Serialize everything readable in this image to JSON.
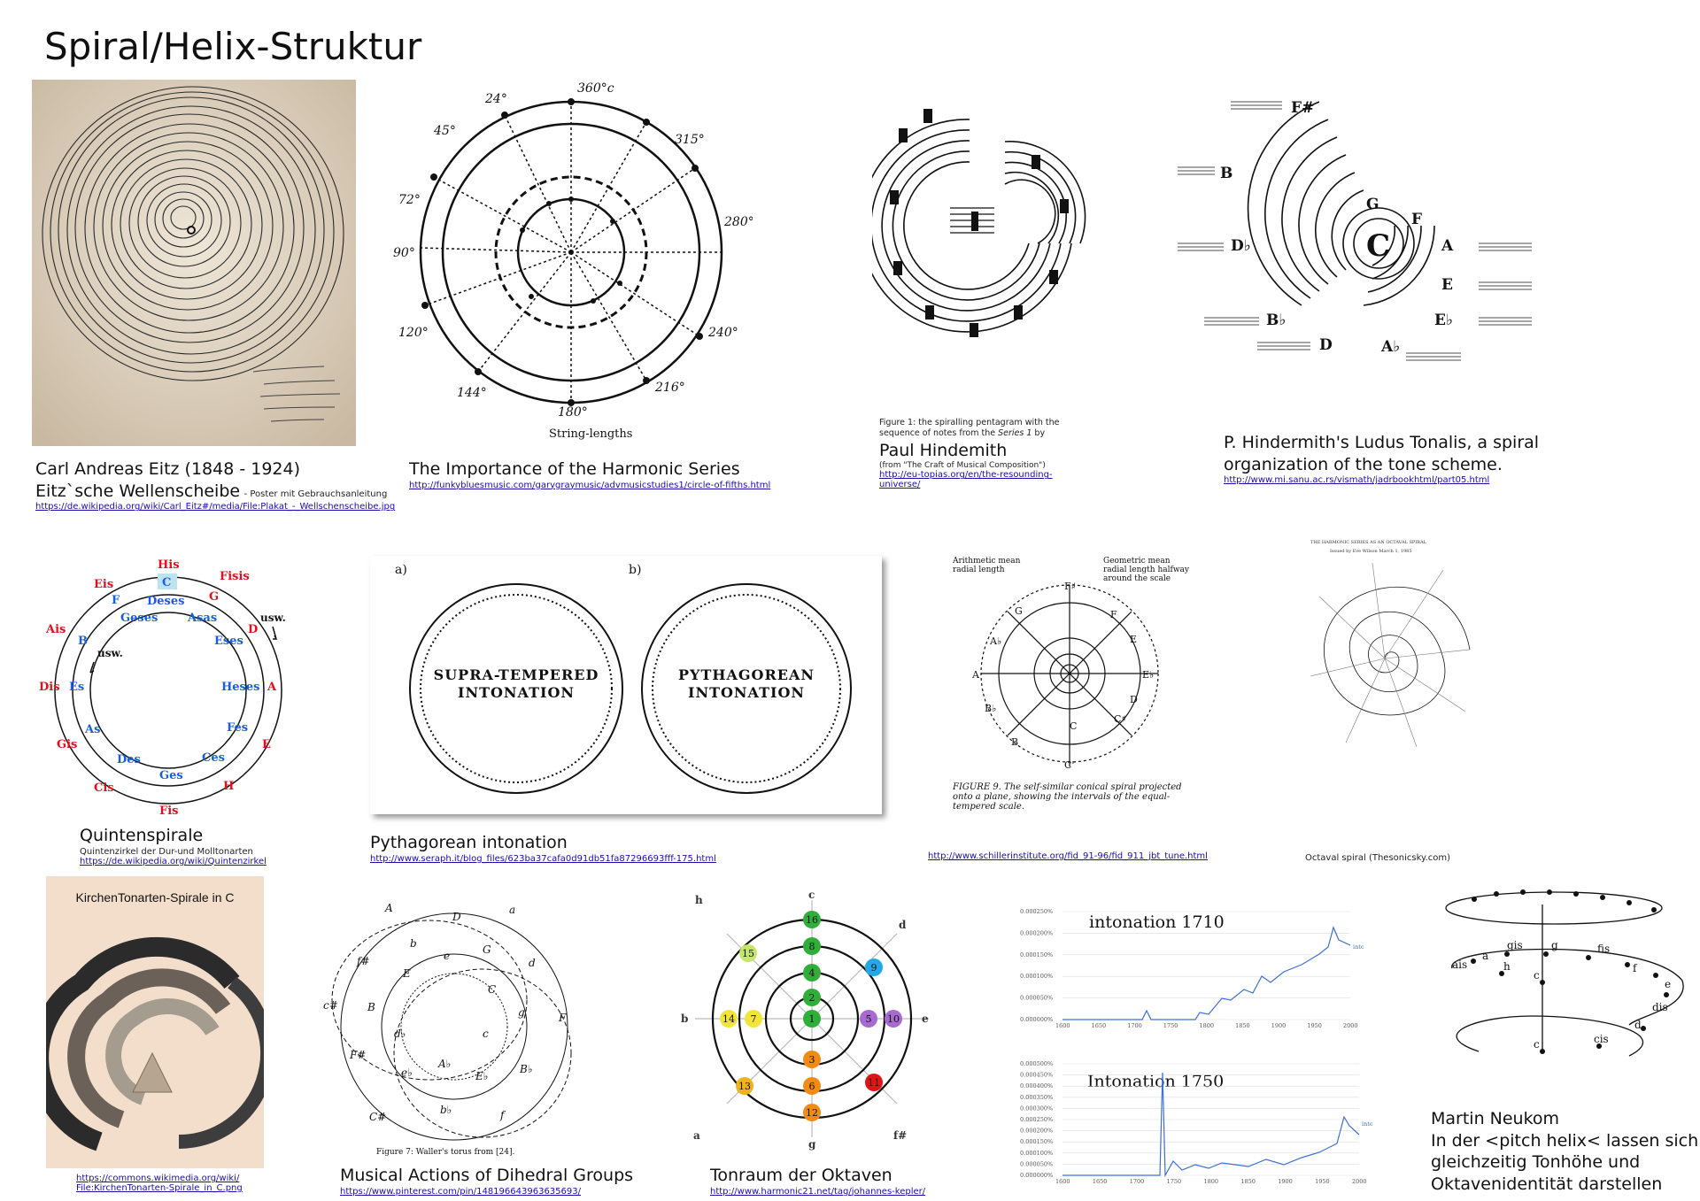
{
  "page": {
    "title": "Spiral/Helix-Struktur"
  },
  "items": {
    "eitz": {
      "line1": "Carl Andreas Eitz (1848 - 1924)",
      "line2": "Eitz`sche Wellenscheibe",
      "note": "- Poster mit Gebrauchsanleitung",
      "url": "https://de.wikipedia.org/wiki/Carl_Eitz#/media/File:Plakat_-_Wellschenscheibe.jpg"
    },
    "harmonic": {
      "caption": "The Importance of the Harmonic Series",
      "url": "http://funkybluesmusic.com/garygraymusic/advmusicstudies1/circle-of-fifths.html",
      "figure_label": "String-lengths",
      "degrees": [
        "360°c",
        "24°",
        "45°",
        "72°",
        "90°",
        "120°",
        "144°",
        "180°",
        "216°",
        "240°",
        "280°",
        "315°"
      ]
    },
    "hindemith": {
      "fig_caption_1": "Figure 1: the spiralling pentagram with the",
      "fig_caption_2": "sequence of notes from the",
      "fig_caption_series": "Series 1",
      "fig_caption_3": "by",
      "name": "Paul Hindemith",
      "sub": "(from \"The Craft of Musical Composition\")",
      "url": "http://eu-topias.org/en/the-resounding-universe/"
    },
    "ludus": {
      "line1": "P. Hindermith's Ludus Tonalis, a spiral",
      "line2": "organization of the tone scheme.",
      "url": "http://www.mi.sanu.ac.rs/vismath/jadrbookhtml/part05.html",
      "notes": [
        "F#",
        "B",
        "G",
        "F",
        "D♭",
        "C",
        "A",
        "E",
        "E♭",
        "B♭",
        "D",
        "A♭"
      ]
    },
    "quinten": {
      "caption": "Quintenspirale",
      "sub": "Quintenzirkel der Dur-und Molltonarten",
      "url": "https://de.wikipedia.org/wiki/Quintenzirkel",
      "usw": "usw.",
      "red": [
        "His",
        "Fisis",
        "Eis",
        "G",
        "Ais",
        "D",
        "Dis",
        "A",
        "Gis",
        "E",
        "Cis",
        "H",
        "Fis"
      ],
      "blue": [
        "C",
        "F",
        "Deses",
        "Geses",
        "Asas",
        "B",
        "Eses",
        "Es",
        "Heses",
        "As",
        "Fes",
        "Des",
        "Ces",
        "Ges"
      ]
    },
    "pythagorean": {
      "caption": "Pythagorean intonation",
      "url": "http://www.seraph.it/blog_files/623ba37cafa0d91db51fa87296693fff-175.html",
      "label_a": "a)",
      "label_b": "b)",
      "circle_a_1": "SUPRA-TEMPERED",
      "circle_a_2": "INTONATION",
      "circle_b_1": "PYTHAGOREAN",
      "circle_b_2": "INTONATION"
    },
    "schiller": {
      "url": "http://www.schillerinstitute.org/fid_91-96/fid_911_jbt_tune.html",
      "label_arith_1": "Arithmetic mean",
      "label_arith_2": "radial length",
      "label_geo_1": "Geometric mean",
      "label_geo_2": "radial length halfway",
      "label_geo_3": "around the scale",
      "fig_1": "FIGURE 9. The self-similar conical spiral projected",
      "fig_2": "onto a plane, showing the intervals of the equal-",
      "fig_3": "tempered scale.",
      "notes": [
        "F♯",
        "G",
        "F",
        "A♭",
        "E",
        "A",
        "E♭",
        "B♭",
        "D",
        "B",
        "C♯",
        "C",
        "C'"
      ]
    },
    "octaval": {
      "caption": "Octaval spiral  (Thesonicsky.com)",
      "header": "THE HARMONIC SERIES AS AN OCTAVAL SPIRAL",
      "sub": "Issued by Eve Wilson  March 1, 1985"
    },
    "kirchen": {
      "poster_title": "KirchenTonarten-Spirale in C",
      "url_1": "https://commons.wikimedia.org/wiki/",
      "url_2": "File:KirchenTonarten-Spirale_in_C.png"
    },
    "dihedral": {
      "caption": "Musical Actions of Dihedral Groups",
      "url": "https://www.pinterest.com/pin/148196643963635693/",
      "fig": "Figure 7: Waller's torus from [24].",
      "notes": [
        "A",
        "D",
        "a",
        "f#",
        "b",
        "G",
        "e",
        "d",
        "c#",
        "E",
        "C",
        "F",
        "B",
        "c",
        "g",
        "F#",
        "d♭",
        "A♭",
        "B♭",
        "e♭",
        "E♭",
        "C#",
        "b♭",
        "f"
      ]
    },
    "tonraum": {
      "caption": "Tonraum der Oktaven",
      "url": "http://www.harmonic21.net/tag/johannes-kepler/",
      "axes": [
        "c",
        "d",
        "e",
        "f#",
        "g",
        "a",
        "b",
        "h"
      ],
      "nodes": [
        "16",
        "8",
        "4",
        "2",
        "1",
        "3",
        "6",
        "12",
        "15",
        "9",
        "14",
        "7",
        "5",
        "10",
        "13",
        "11"
      ]
    },
    "intonation": {
      "title_1710": "intonation 1710",
      "title_1750": "Intonation 1750",
      "series": "intonation",
      "y_1710": [
        "0.000250%",
        "0.000200%",
        "0.000150%",
        "0.000100%",
        "0.000050%",
        "0.000000%"
      ],
      "y_1750": [
        "0.000500%",
        "0.000450%",
        "0.000400%",
        "0.000350%",
        "0.000300%",
        "0.000250%",
        "0.000200%",
        "0.000150%",
        "0.000100%",
        "0.000050%",
        "0.000000%"
      ],
      "x": [
        "1600",
        "1650",
        "1700",
        "1750",
        "1800",
        "1850",
        "1900",
        "1950",
        "2000"
      ]
    },
    "neukom": {
      "line1": "Martin Neukom",
      "line2": "In der <pitch helix< lassen sich",
      "line3": "gleichzeitig Tonhöhe und",
      "line4": "Oktavenidentität darstellen",
      "notes": [
        "ais",
        "a",
        "gis",
        "g",
        "fis",
        "f",
        "h",
        "c",
        "e",
        "dis",
        "d",
        "cis",
        "c"
      ]
    }
  }
}
